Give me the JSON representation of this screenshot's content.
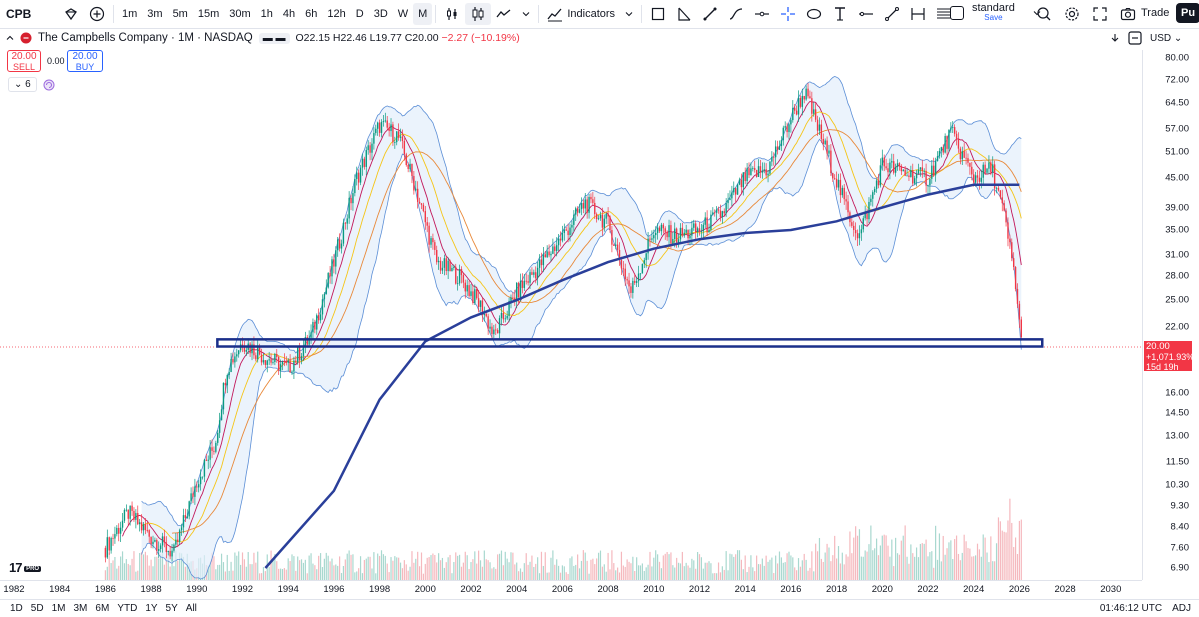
{
  "toolbar": {
    "symbol": "CPB",
    "intervals": [
      "1m",
      "3m",
      "5m",
      "15m",
      "30m",
      "1h",
      "4h",
      "6h",
      "12h",
      "D",
      "3D",
      "W",
      "M"
    ],
    "active_interval": "M",
    "indicators_label": "Indicators",
    "layout_name": "standard",
    "layout_save": "Save",
    "trade_label": "Trade",
    "publish_label": "Pu"
  },
  "legend": {
    "title": "The Campbells Company · 1M · NASDAQ",
    "open": "O22.15",
    "high": "H22.46",
    "low": "L19.77",
    "close": "C20.00",
    "change": "−2.27 (−10.19%)",
    "sell_price": "20.00",
    "sell_label": "SELL",
    "spread": "0.00",
    "buy_price": "20.00",
    "buy_label": "BUY",
    "indicator_count": "6"
  },
  "right_header": {
    "currency": "USD"
  },
  "price_tag": {
    "price": "20.00",
    "change": "+1,071.93%",
    "countdown": "15d 19h"
  },
  "colors": {
    "up": "#089981",
    "down": "#f23645",
    "ma_long": "#2a3f9a",
    "band": "#5b8ed6",
    "ma_fast": "#c2185b",
    "ma_mid": "#f5c518",
    "ma_slow": "#e8893a",
    "support_box": "#1a2f8a"
  },
  "chart_data": {
    "type": "candlestick",
    "symbol": "CPB",
    "timeframe": "1M",
    "exchange": "NASDAQ",
    "y_scale": "log",
    "y_ticks": [
      "80.00",
      "72.00",
      "64.50",
      "57.00",
      "51.00",
      "45.00",
      "39.00",
      "35.00",
      "31.00",
      "28.00",
      "25.00",
      "22.00",
      "20.00",
      "16.00",
      "14.50",
      "13.00",
      "11.50",
      "10.30",
      "9.30",
      "8.40",
      "7.60",
      "6.90"
    ],
    "x_ticks": [
      "1982",
      "1984",
      "1986",
      "1988",
      "1990",
      "1992",
      "1994",
      "1996",
      "1998",
      "2000",
      "2002",
      "2004",
      "2006",
      "2008",
      "2010",
      "2012",
      "2014",
      "2016",
      "2018",
      "2020",
      "2022",
      "2024",
      "2026",
      "2028",
      "2030"
    ],
    "price_path": [
      {
        "year": 1986.0,
        "price": 7.6
      },
      {
        "year": 1987.0,
        "price": 9.0
      },
      {
        "year": 1988.0,
        "price": 8.0
      },
      {
        "year": 1989.0,
        "price": 7.4
      },
      {
        "year": 1990.0,
        "price": 10.5
      },
      {
        "year": 1990.8,
        "price": 12.5
      },
      {
        "year": 1991.3,
        "price": 18.0
      },
      {
        "year": 1992.0,
        "price": 20.5
      },
      {
        "year": 1993.0,
        "price": 19.0
      },
      {
        "year": 1994.0,
        "price": 18.0
      },
      {
        "year": 1995.0,
        "price": 21.0
      },
      {
        "year": 1996.0,
        "price": 30.0
      },
      {
        "year": 1997.0,
        "price": 45.0
      },
      {
        "year": 1998.0,
        "price": 58.0
      },
      {
        "year": 1998.8,
        "price": 55.0
      },
      {
        "year": 1999.5,
        "price": 44.0
      },
      {
        "year": 2000.5,
        "price": 30.0
      },
      {
        "year": 2001.5,
        "price": 28.0
      },
      {
        "year": 2002.5,
        "price": 24.0
      },
      {
        "year": 2003.0,
        "price": 21.0
      },
      {
        "year": 2004.0,
        "price": 26.0
      },
      {
        "year": 2005.0,
        "price": 29.5
      },
      {
        "year": 2006.0,
        "price": 34.0
      },
      {
        "year": 2007.0,
        "price": 40.0
      },
      {
        "year": 2008.0,
        "price": 36.0
      },
      {
        "year": 2009.0,
        "price": 26.0
      },
      {
        "year": 2010.0,
        "price": 35.0
      },
      {
        "year": 2011.0,
        "price": 34.0
      },
      {
        "year": 2012.0,
        "price": 35.0
      },
      {
        "year": 2013.0,
        "price": 38.0
      },
      {
        "year": 2014.0,
        "price": 45.0
      },
      {
        "year": 2015.0,
        "price": 47.0
      },
      {
        "year": 2016.0,
        "price": 60.0
      },
      {
        "year": 2016.6,
        "price": 68.0
      },
      {
        "year": 2017.5,
        "price": 52.0
      },
      {
        "year": 2018.5,
        "price": 38.0
      },
      {
        "year": 2019.0,
        "price": 34.0
      },
      {
        "year": 2020.0,
        "price": 48.0
      },
      {
        "year": 2021.0,
        "price": 46.0
      },
      {
        "year": 2022.0,
        "price": 45.0
      },
      {
        "year": 2023.0,
        "price": 56.0
      },
      {
        "year": 2024.0,
        "price": 45.0
      },
      {
        "year": 2024.8,
        "price": 47.0
      },
      {
        "year": 2025.3,
        "price": 38.0
      },
      {
        "year": 2025.8,
        "price": 28.0
      },
      {
        "year": 2026.1,
        "price": 20.0
      }
    ],
    "ma_long_path": [
      {
        "year": 1993.0,
        "price": 6.9
      },
      {
        "year": 1996.0,
        "price": 10.0
      },
      {
        "year": 1998.0,
        "price": 15.5
      },
      {
        "year": 2000.0,
        "price": 20.5
      },
      {
        "year": 2002.0,
        "price": 23.0
      },
      {
        "year": 2004.0,
        "price": 25.0
      },
      {
        "year": 2006.0,
        "price": 27.5
      },
      {
        "year": 2008.0,
        "price": 30.0
      },
      {
        "year": 2010.0,
        "price": 32.0
      },
      {
        "year": 2012.0,
        "price": 33.5
      },
      {
        "year": 2014.0,
        "price": 34.5
      },
      {
        "year": 2016.0,
        "price": 35.0
      },
      {
        "year": 2018.0,
        "price": 36.5
      },
      {
        "year": 2020.0,
        "price": 39.0
      },
      {
        "year": 2022.0,
        "price": 41.5
      },
      {
        "year": 2024.0,
        "price": 43.5
      },
      {
        "year": 2026.0,
        "price": 43.5
      }
    ],
    "support_zone": {
      "from_year": 1990.9,
      "to_year": 2027.0,
      "low": 20.0,
      "high": 20.7
    },
    "last": {
      "price": 20.0,
      "change_pct": "+1,071.93%",
      "countdown": "15d 19h"
    }
  },
  "bottom": {
    "ranges": [
      "1D",
      "5D",
      "1M",
      "3M",
      "6M",
      "YTD",
      "1Y",
      "5Y",
      "All"
    ],
    "time": "01:46:12 UTC",
    "adj": "ADJ"
  }
}
